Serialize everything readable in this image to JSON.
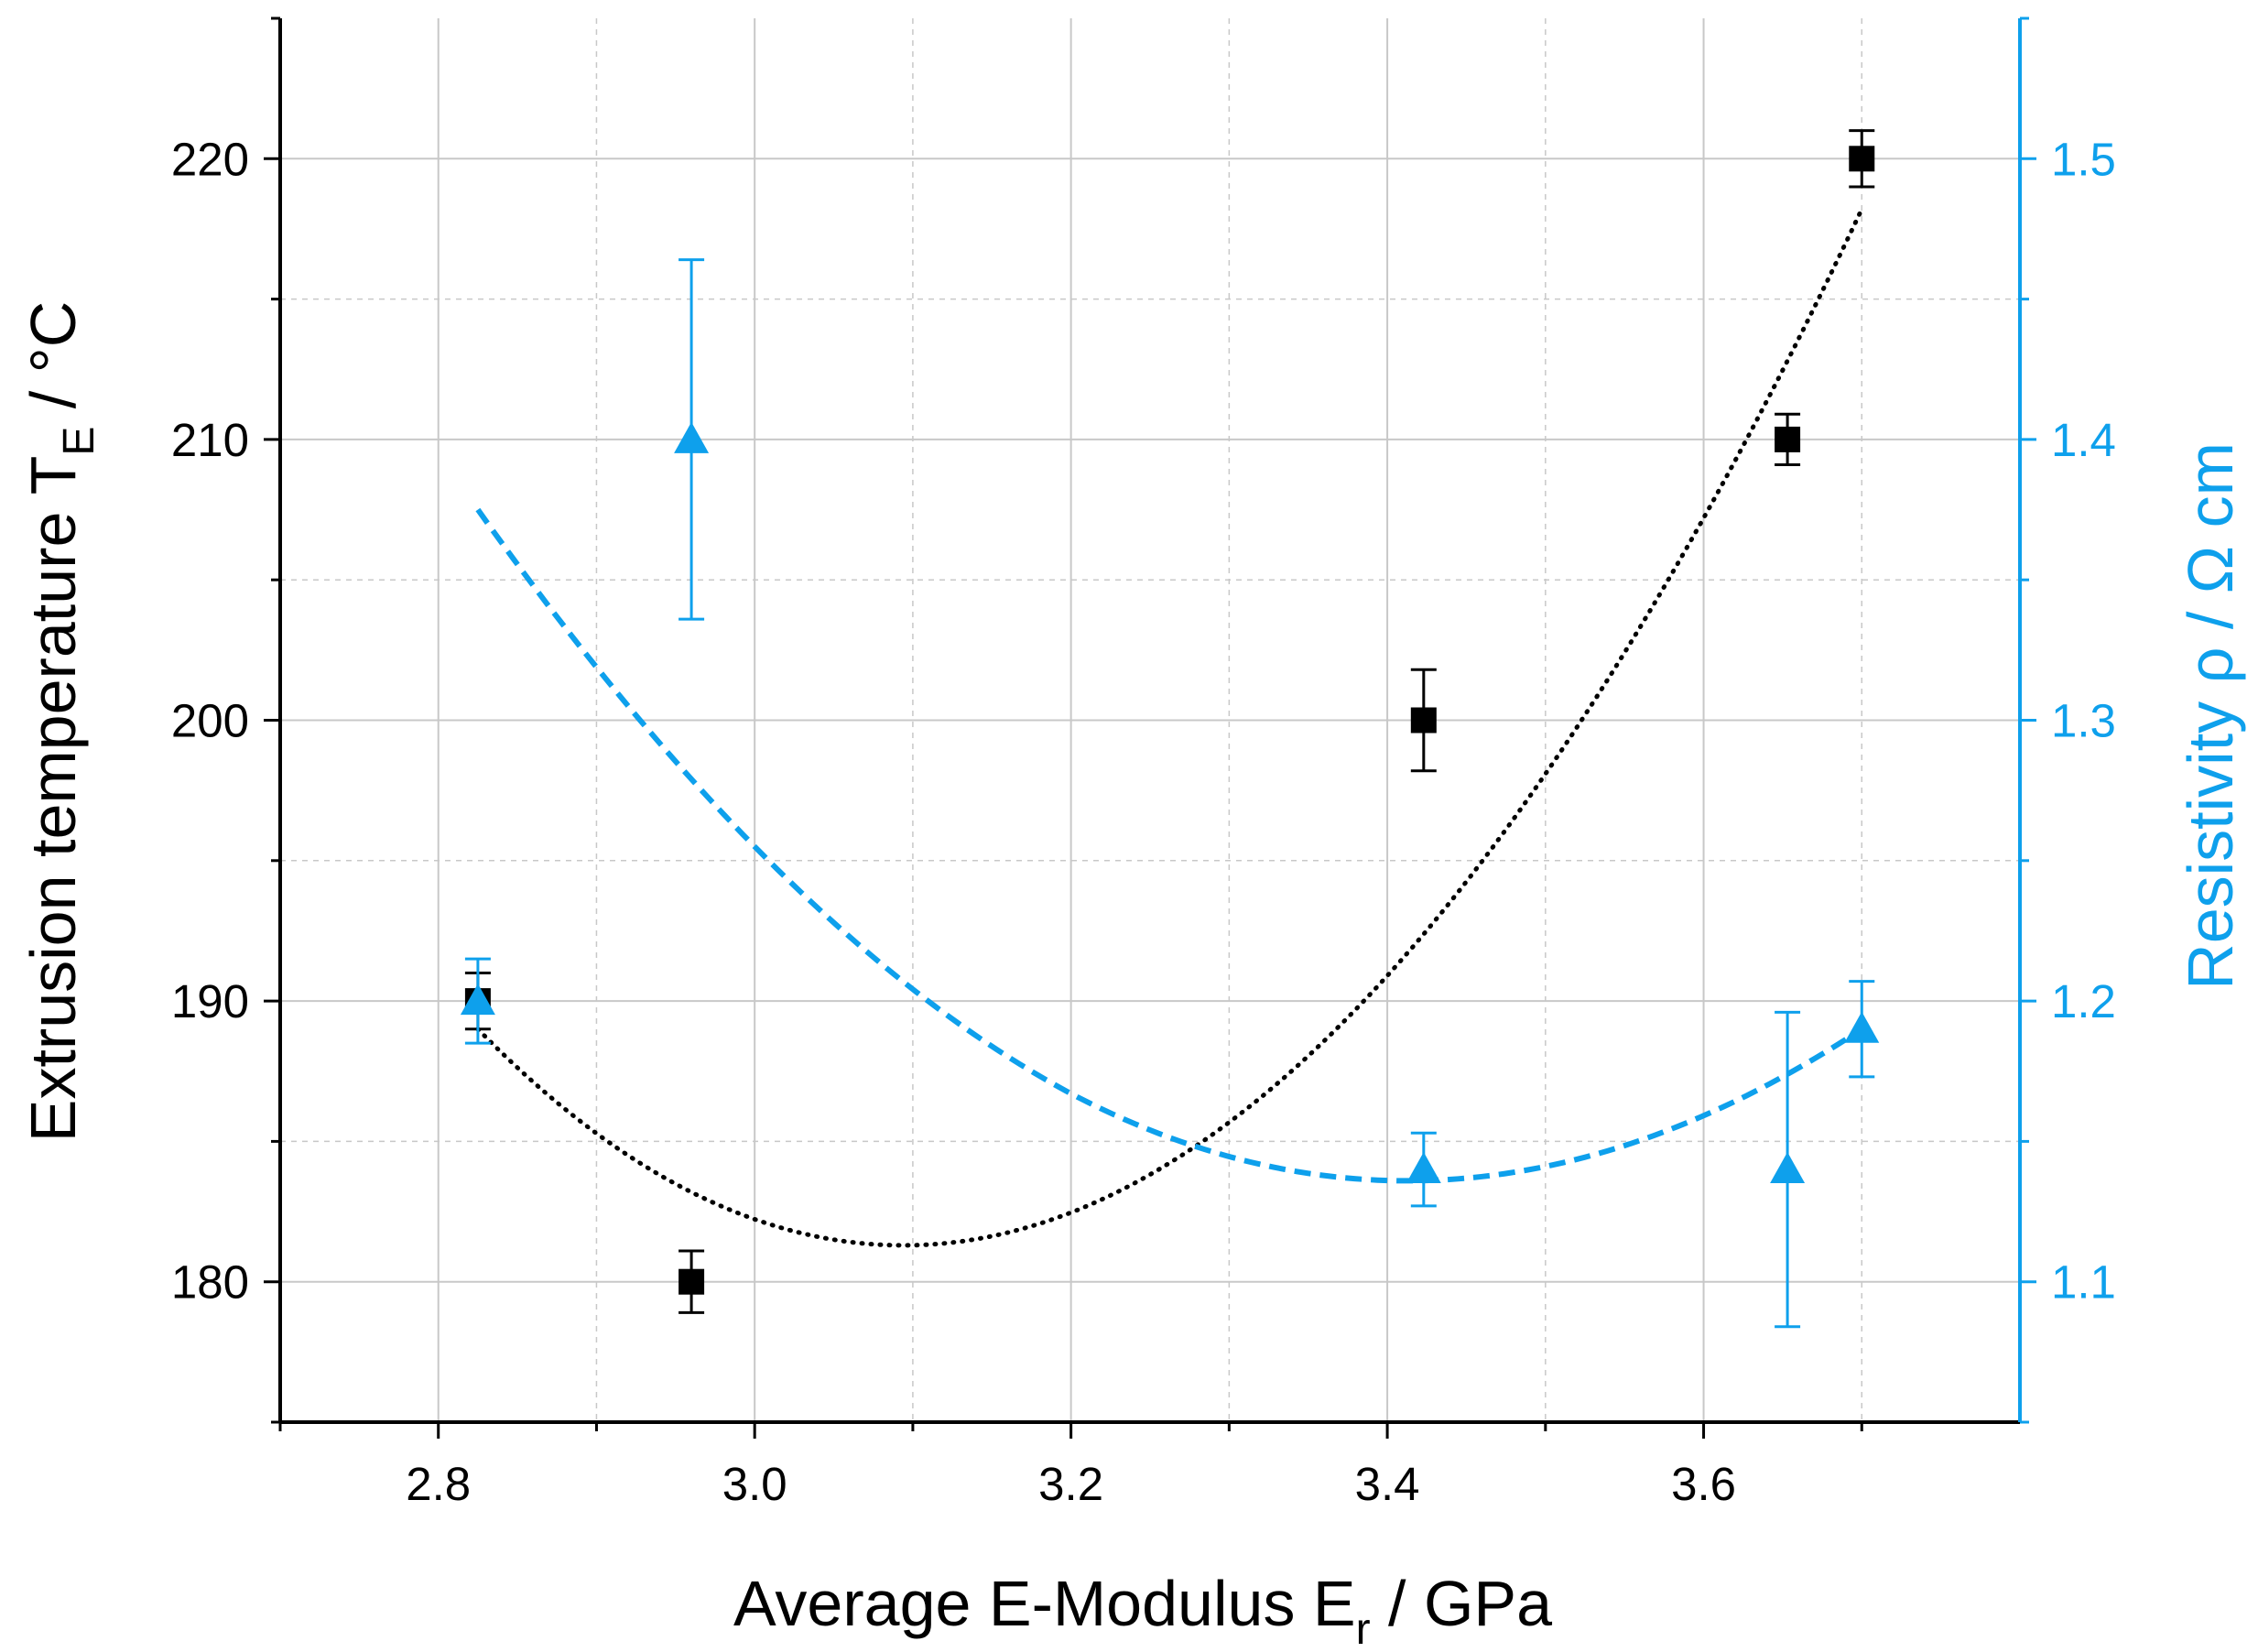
{
  "chart_data": {
    "type": "scatter",
    "xlabel": "Average E-Modulus E_r / GPa",
    "xlabel_main": "Average E-Modulus E",
    "xlabel_sub": "r",
    "xlabel_tail": " / GPa",
    "ylabel": "Extrusion temperature T_E / °C",
    "ylabel_main": "Extrusion temperature T",
    "ylabel_sub": "E",
    "ylabel_tail": " / °C",
    "y2label": "Resistivity ρ / Ω cm",
    "xlim": [
      2.7,
      3.8
    ],
    "ylim": [
      175,
      225
    ],
    "y2lim": [
      1.05,
      1.55
    ],
    "xticks": [
      "2.8",
      "3.0",
      "3.2",
      "3.4",
      "3.6"
    ],
    "xtick_values": [
      2.8,
      3.0,
      3.2,
      3.4,
      3.6
    ],
    "yticks": [
      "180",
      "190",
      "200",
      "210",
      "220"
    ],
    "ytick_values": [
      180,
      190,
      200,
      210,
      220
    ],
    "y2ticks": [
      "1.1",
      "1.2",
      "1.3",
      "1.4",
      "1.5"
    ],
    "y2tick_values": [
      1.1,
      1.2,
      1.3,
      1.4,
      1.5
    ],
    "grid": true,
    "colors": {
      "temperature": "#000000",
      "resistivity": "#0ea0ec",
      "grid": "#c8c8c8"
    },
    "series": [
      {
        "name": "Extrusion temperature",
        "axis": "left",
        "marker": "square",
        "x": [
          2.825,
          2.96,
          3.423,
          3.653,
          3.7
        ],
        "y": [
          190,
          180,
          200,
          210,
          220
        ],
        "err": [
          1.0,
          1.1,
          1.8,
          0.9,
          1.0
        ]
      },
      {
        "name": "Resistivity",
        "axis": "right",
        "marker": "triangle",
        "x": [
          2.825,
          2.96,
          3.423,
          3.653,
          3.7
        ],
        "y": [
          1.2,
          1.4,
          1.14,
          1.14,
          1.19
        ],
        "err": [
          0.015,
          0.064,
          0.013,
          0.056,
          0.017
        ]
      }
    ],
    "fits": [
      {
        "name": "Temperature quadratic fit",
        "axis": "left",
        "style": "dotted",
        "x_range": [
          2.825,
          3.7
        ],
        "points": [
          [
            2.825,
            189.0
          ],
          [
            3.1,
            181.3
          ],
          [
            3.4,
            190.9
          ],
          [
            3.7,
            218.2
          ]
        ]
      },
      {
        "name": "Resistivity quadratic fit",
        "axis": "right",
        "style": "dashed",
        "x_range": [
          2.825,
          3.7
        ],
        "points": [
          [
            2.825,
            1.375
          ],
          [
            3.0,
            1.255
          ],
          [
            3.2,
            1.167
          ],
          [
            3.42,
            1.136
          ],
          [
            3.7,
            1.19
          ]
        ]
      }
    ]
  }
}
